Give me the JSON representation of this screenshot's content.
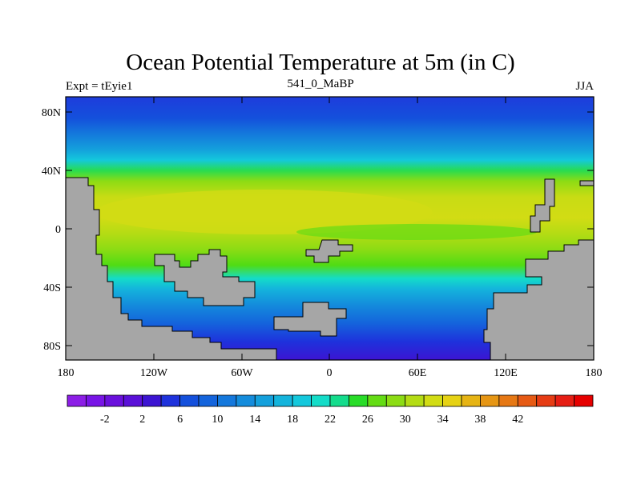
{
  "title": "Ocean Potential Temperature at 5m (in C)",
  "subtitle_left": "Expt = tEyie1",
  "subtitle_center": "541_0_MaBP",
  "subtitle_right": "JJA",
  "lat_ticks": [
    "80N",
    "40N",
    "0",
    "40S",
    "80S"
  ],
  "lon_ticks": [
    "180",
    "120W",
    "60W",
    "0",
    "60E",
    "120E",
    "180"
  ],
  "colorbar": {
    "colors": [
      "#8c1ee6",
      "#7814e6",
      "#6a10dc",
      "#5a10d8",
      "#3c14d2",
      "#1e32dc",
      "#1450dc",
      "#1464dc",
      "#1478dc",
      "#148cdc",
      "#14a0dc",
      "#14b4dc",
      "#14c8dc",
      "#14dcc8",
      "#14dc8c",
      "#28dc28",
      "#64dc14",
      "#8cdc14",
      "#b4dc14",
      "#d2dc14",
      "#e6d214",
      "#e6b414",
      "#e69614",
      "#e67814",
      "#e65a14",
      "#e63c14",
      "#e61e14",
      "#e60000"
    ],
    "tick_labels": [
      "-2",
      "2",
      "6",
      "10",
      "14",
      "18",
      "22",
      "26",
      "30",
      "34",
      "38",
      "42"
    ]
  }
}
